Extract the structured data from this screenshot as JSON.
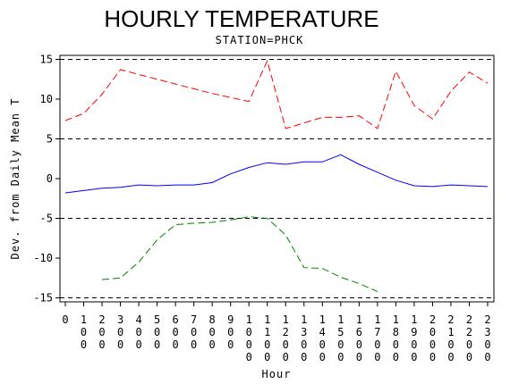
{
  "chart_data": {
    "type": "line",
    "title": "HOURLY TEMPERATURE",
    "subtitle": "STATION=PHCK",
    "xlabel": "Hour",
    "ylabel": "Dev. from Daily Mean T",
    "x_ticks": [
      "0",
      "100",
      "200",
      "300",
      "400",
      "500",
      "600",
      "700",
      "800",
      "900",
      "1000",
      "1100",
      "1200",
      "1300",
      "1400",
      "1500",
      "1600",
      "1700",
      "1800",
      "1900",
      "2000",
      "2100",
      "2200",
      "2300"
    ],
    "y_ticks": [
      -15,
      -10,
      -5,
      0,
      5,
      10,
      15
    ],
    "ylim": [
      -15.5,
      15.5
    ],
    "reference_lines": [
      -15,
      -5,
      5,
      15
    ],
    "series": [
      {
        "color": "#ff0000",
        "dash": "dashed",
        "values": [
          7.3,
          8.2,
          10.6,
          13.7,
          13.1,
          12.5,
          11.9,
          11.3,
          10.7,
          10.2,
          9.7,
          14.8,
          6.3,
          7.0,
          7.7,
          7.7,
          7.9,
          6.3,
          13.5,
          9.2,
          7.5,
          11.0,
          13.4,
          12.0
        ]
      },
      {
        "color": "#0000ff",
        "dash": "solid",
        "values": [
          -1.8,
          -1.5,
          -1.2,
          -1.1,
          -0.8,
          -0.9,
          -0.8,
          -0.8,
          -0.5,
          0.6,
          1.4,
          2.0,
          1.8,
          2.1,
          2.1,
          3.0,
          1.8,
          0.8,
          -0.2,
          -0.9,
          -1.0,
          -0.8,
          -0.9,
          -1.0
        ]
      },
      {
        "color": "#008000",
        "dash": "dashed",
        "values": [
          null,
          null,
          -12.7,
          -12.5,
          -10.5,
          -7.7,
          -5.8,
          -5.6,
          -5.5,
          -5.2,
          -4.8,
          -5.0,
          -7.1,
          -11.2,
          -11.3,
          -12.4,
          -13.2,
          -14.2,
          null,
          null,
          null,
          null,
          null,
          null
        ]
      }
    ]
  }
}
